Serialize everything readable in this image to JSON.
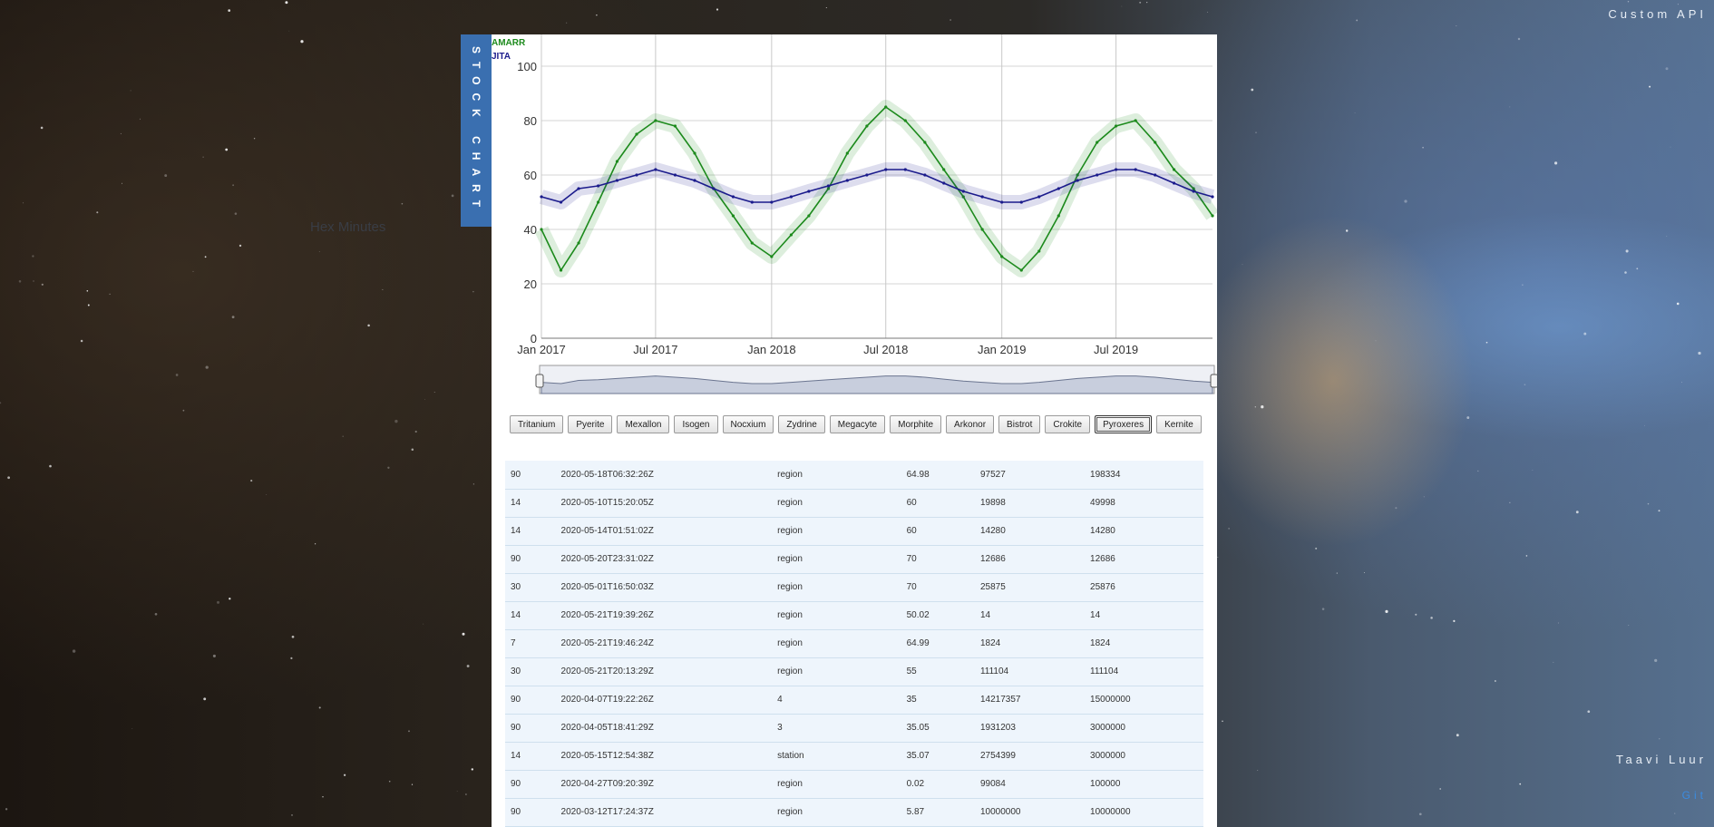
{
  "header": {
    "custom_api": "Custom API"
  },
  "footer": {
    "author": "Taavi Luur",
    "git": "Git"
  },
  "ghost_text": "Hex Minutes",
  "side_tab": {
    "label": "STOCK CHART"
  },
  "colors": {
    "amarr": "#1c8a1c",
    "jita": "#1b1b8c",
    "tab": "#3a6fb0",
    "row": "#eef5fc"
  },
  "chart_data": {
    "type": "line",
    "series": [
      {
        "name": "AMARR",
        "color": "#1c8a1c",
        "x": [
          "2017-01-01",
          "2017-02-01",
          "2017-03-01",
          "2017-04-01",
          "2017-05-01",
          "2017-06-01",
          "2017-07-01",
          "2017-08-01",
          "2017-09-01",
          "2017-10-01",
          "2017-11-01",
          "2017-12-01",
          "2018-01-01",
          "2018-02-01",
          "2018-03-01",
          "2018-04-01",
          "2018-05-01",
          "2018-06-01",
          "2018-07-01",
          "2018-08-01",
          "2018-09-01",
          "2018-10-01",
          "2018-11-01",
          "2018-12-01",
          "2019-01-01",
          "2019-02-01",
          "2019-03-01",
          "2019-04-01",
          "2019-05-01",
          "2019-06-01",
          "2019-07-01",
          "2019-08-01",
          "2019-09-01",
          "2019-10-01",
          "2019-11-01",
          "2019-12-01"
        ],
        "values": [
          40,
          25,
          35,
          50,
          65,
          75,
          80,
          78,
          68,
          55,
          45,
          35,
          30,
          38,
          45,
          55,
          68,
          78,
          85,
          80,
          72,
          62,
          52,
          40,
          30,
          25,
          32,
          45,
          60,
          72,
          78,
          80,
          72,
          62,
          55,
          45
        ]
      },
      {
        "name": "JITA",
        "color": "#1b1b8c",
        "x": [
          "2017-01-01",
          "2017-02-01",
          "2017-03-01",
          "2017-04-01",
          "2017-05-01",
          "2017-06-01",
          "2017-07-01",
          "2017-08-01",
          "2017-09-01",
          "2017-10-01",
          "2017-11-01",
          "2017-12-01",
          "2018-01-01",
          "2018-02-01",
          "2018-03-01",
          "2018-04-01",
          "2018-05-01",
          "2018-06-01",
          "2018-07-01",
          "2018-08-01",
          "2018-09-01",
          "2018-10-01",
          "2018-11-01",
          "2018-12-01",
          "2019-01-01",
          "2019-02-01",
          "2019-03-01",
          "2019-04-01",
          "2019-05-01",
          "2019-06-01",
          "2019-07-01",
          "2019-08-01",
          "2019-09-01",
          "2019-10-01",
          "2019-11-01",
          "2019-12-01"
        ],
        "values": [
          52,
          50,
          55,
          56,
          58,
          60,
          62,
          60,
          58,
          55,
          52,
          50,
          50,
          52,
          54,
          56,
          58,
          60,
          62,
          62,
          60,
          57,
          54,
          52,
          50,
          50,
          52,
          55,
          58,
          60,
          62,
          62,
          60,
          57,
          54,
          52
        ]
      }
    ],
    "ylim": [
      0,
      100
    ],
    "yticks": [
      0,
      20,
      40,
      60,
      80,
      100
    ],
    "xticks": [
      "Jan 2017",
      "Jul 2017",
      "Jan 2018",
      "Jul 2018",
      "Jan 2019",
      "Jul 2019"
    ],
    "legend": "top-left",
    "grid": true,
    "navigator": true
  },
  "minerals": [
    "Tritanium",
    "Pyerite",
    "Mexallon",
    "Isogen",
    "Nocxium",
    "Zydrine",
    "Megacyte",
    "Morphite",
    "Arkonor",
    "Bistrot",
    "Crokite",
    "Pyroxeres",
    "Kernite"
  ],
  "selected_mineral": "Pyroxeres",
  "orders": [
    [
      "90",
      "2020-05-18T06:32:26Z",
      "region",
      "64.98",
      "97527",
      "198334"
    ],
    [
      "14",
      "2020-05-10T15:20:05Z",
      "region",
      "60",
      "19898",
      "49998"
    ],
    [
      "14",
      "2020-05-14T01:51:02Z",
      "region",
      "60",
      "14280",
      "14280"
    ],
    [
      "90",
      "2020-05-20T23:31:02Z",
      "region",
      "70",
      "12686",
      "12686"
    ],
    [
      "30",
      "2020-05-01T16:50:03Z",
      "region",
      "70",
      "25875",
      "25876"
    ],
    [
      "14",
      "2020-05-21T19:39:26Z",
      "region",
      "50.02",
      "14",
      "14"
    ],
    [
      "7",
      "2020-05-21T19:46:24Z",
      "region",
      "64.99",
      "1824",
      "1824"
    ],
    [
      "30",
      "2020-05-21T20:13:29Z",
      "region",
      "55",
      "111104",
      "111104"
    ],
    [
      "90",
      "2020-04-07T19:22:26Z",
      "4",
      "35",
      "14217357",
      "15000000"
    ],
    [
      "90",
      "2020-04-05T18:41:29Z",
      "3",
      "35.05",
      "1931203",
      "3000000"
    ],
    [
      "14",
      "2020-05-15T12:54:38Z",
      "station",
      "35.07",
      "2754399",
      "3000000"
    ],
    [
      "90",
      "2020-04-27T09:20:39Z",
      "region",
      "0.02",
      "99084",
      "100000"
    ],
    [
      "90",
      "2020-03-12T17:24:37Z",
      "region",
      "5.87",
      "10000000",
      "10000000"
    ]
  ]
}
